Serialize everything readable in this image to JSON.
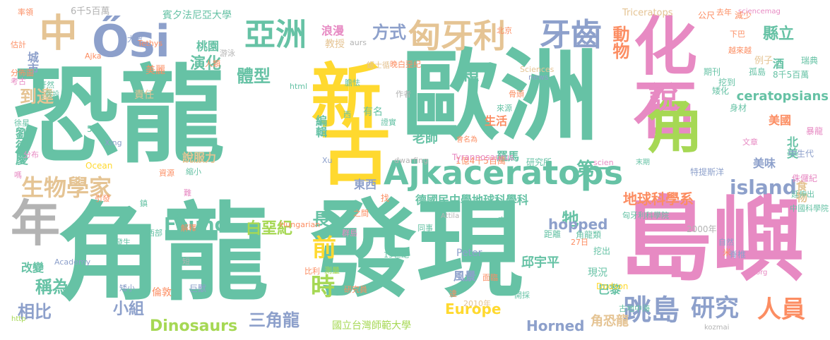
{
  "colors": {
    "teal": "#66c2a5",
    "orange": "#fc8d62",
    "blue": "#8da0cb",
    "pink": "#e78ac3",
    "green": "#a6d854",
    "yellow": "#ffd92f",
    "tan": "#e5c494",
    "gray": "#b3b3b3"
  },
  "words": [
    {
      "t": "恐龍",
      "c": "teal"
    },
    {
      "t": "歐洲",
      "c": "teal"
    },
    {
      "t": "化石",
      "c": "pink"
    },
    {
      "t": "角龍",
      "c": "teal"
    },
    {
      "t": "發現",
      "c": "teal"
    },
    {
      "t": "島嶼",
      "c": "pink"
    },
    {
      "t": "新",
      "c": "yellow"
    },
    {
      "t": "古",
      "c": "yellow"
    },
    {
      "t": "角",
      "c": "green"
    },
    {
      "t": "說",
      "c": "pink"
    },
    {
      "t": "年",
      "c": "gray"
    },
    {
      "t": "中",
      "c": "tan"
    },
    {
      "t": "Ősi",
      "c": "blue"
    },
    {
      "t": "Ajkaceratops",
      "c": "teal"
    },
    {
      "t": "亞洲",
      "c": "teal"
    },
    {
      "t": "匈牙利",
      "c": "tan"
    },
    {
      "t": "牙齒",
      "c": "blue"
    },
    {
      "t": "生物學家",
      "c": "tan"
    },
    {
      "t": "跳島",
      "c": "blue"
    },
    {
      "t": "研究",
      "c": "blue"
    },
    {
      "t": "人員",
      "c": "orange"
    },
    {
      "t": "相比",
      "c": "blue"
    },
    {
      "t": "三角龍",
      "c": "blue"
    },
    {
      "t": "island",
      "c": "blue"
    },
    {
      "t": "Found",
      "c": "teal"
    },
    {
      "t": "白堊紀",
      "c": "green"
    },
    {
      "t": "前",
      "c": "yellow"
    },
    {
      "t": "時",
      "c": "green"
    },
    {
      "t": "長",
      "c": "teal"
    },
    {
      "t": "牠",
      "c": "teal"
    },
    {
      "t": "方式",
      "c": "blue"
    },
    {
      "t": "動物",
      "c": "orange"
    },
    {
      "t": "第一",
      "c": "teal"
    },
    {
      "t": "縣立",
      "c": "teal"
    },
    {
      "t": "演化",
      "c": "teal"
    },
    {
      "t": "桃園",
      "c": "teal"
    },
    {
      "t": "體型",
      "c": "teal"
    },
    {
      "t": "到達",
      "c": "tan"
    },
    {
      "t": "稱為",
      "c": "teal"
    },
    {
      "t": "小組",
      "c": "blue"
    },
    {
      "t": "Dinosaurs",
      "c": "green"
    },
    {
      "t": "Europe",
      "c": "yellow"
    },
    {
      "t": "Horned",
      "c": "blue"
    },
    {
      "t": "角恐龍",
      "c": "tan"
    },
    {
      "t": "德國民中學地球科學科",
      "c": "teal"
    },
    {
      "t": "地球科學系",
      "c": "orange"
    },
    {
      "t": "食物",
      "c": "tan"
    },
    {
      "t": "美味",
      "c": "blue"
    },
    {
      "t": "北美",
      "c": "teal"
    },
    {
      "t": "美國",
      "c": "orange"
    },
    {
      "t": "ceratopsians",
      "c": "teal"
    },
    {
      "t": "劉德慶",
      "c": "teal"
    },
    {
      "t": "城市",
      "c": "blue"
    },
    {
      "t": "美麗",
      "c": "orange"
    },
    {
      "t": "責任",
      "c": "tan"
    },
    {
      "t": "老師",
      "c": "teal"
    },
    {
      "t": "羅馬",
      "c": "teal"
    },
    {
      "t": "編輯",
      "c": "teal"
    },
    {
      "t": "有名",
      "c": "teal"
    },
    {
      "t": "顆",
      "c": "teal"
    },
    {
      "t": "酒",
      "c": "teal"
    },
    {
      "t": "hopped",
      "c": "blue"
    },
    {
      "t": "邱宇平",
      "c": "teal"
    },
    {
      "t": "風景",
      "c": "blue"
    },
    {
      "t": "現況",
      "c": "teal"
    },
    {
      "t": "巴黎",
      "c": "teal"
    },
    {
      "t": "國立台灣師範大學",
      "c": "green"
    },
    {
      "t": "倫敦",
      "c": "orange"
    },
    {
      "t": "改變",
      "c": "teal"
    },
    {
      "t": "東西",
      "c": "blue"
    },
    {
      "t": "浪漫",
      "c": "pink"
    },
    {
      "t": "教授",
      "c": "tan"
    },
    {
      "t": "賓夕法尼亞大學",
      "c": "teal"
    },
    {
      "t": "6千5百萬",
      "c": "gray"
    },
    {
      "t": "率領",
      "c": "orange"
    },
    {
      "t": "生活",
      "c": "orange"
    },
    {
      "t": "說服力",
      "c": "tan"
    },
    {
      "t": "Dodson",
      "c": "yellow"
    },
    {
      "t": "Peter",
      "c": "blue"
    },
    {
      "t": "Triceratops",
      "c": "tan"
    },
    {
      "t": "sciencemag",
      "c": "pink"
    },
    {
      "t": "公尺",
      "c": "orange"
    },
    {
      "t": "減少",
      "c": "orange"
    },
    {
      "t": "下巴",
      "c": "orange"
    },
    {
      "t": "越來越",
      "c": "orange"
    },
    {
      "t": "例子",
      "c": "tan"
    },
    {
      "t": "瑞典",
      "c": "teal"
    },
    {
      "t": "孤島",
      "c": "teal"
    },
    {
      "t": "8千5百萬",
      "c": "teal"
    },
    {
      "t": "期刊",
      "c": "teal"
    },
    {
      "t": "矮化",
      "c": "teal"
    },
    {
      "t": "挖到",
      "c": "teal"
    },
    {
      "t": "身材",
      "c": "teal"
    },
    {
      "t": "去年",
      "c": "orange"
    },
    {
      "t": "古地中海",
      "c": "teal"
    },
    {
      "t": "挖出",
      "c": "teal"
    },
    {
      "t": "自然",
      "c": "blue"
    },
    {
      "t": "脊椎",
      "c": "blue"
    },
    {
      "t": "特提斯洋",
      "c": "blue"
    },
    {
      "t": "中生代",
      "c": "blue"
    },
    {
      "t": "侏儸紀",
      "c": "pink"
    },
    {
      "t": "暴龍",
      "c": "pink"
    },
    {
      "t": "文章",
      "c": "pink"
    },
    {
      "t": "延伸出",
      "c": "teal"
    },
    {
      "t": "中國科學院",
      "c": "teal"
    },
    {
      "t": "2000年",
      "c": "gray"
    },
    {
      "t": "匈牙利科學院",
      "c": "teal"
    },
    {
      "t": "角龍類",
      "c": "teal"
    },
    {
      "t": "27日",
      "c": "orange"
    },
    {
      "t": "米",
      "c": "orange"
    },
    {
      "t": "距離",
      "c": "teal"
    },
    {
      "t": "研究所",
      "c": "teal"
    },
    {
      "t": "1億4千5百萬",
      "c": "orange"
    },
    {
      "t": "會名為",
      "c": "orange"
    },
    {
      "t": "Tyrannosaurus",
      "c": "pink"
    },
    {
      "t": "dwarfing",
      "c": "gray"
    },
    {
      "t": "末期",
      "c": "teal"
    },
    {
      "t": "Xu",
      "c": "blue"
    },
    {
      "t": "scien",
      "c": "pink"
    },
    {
      "t": "Ocean",
      "c": "yellow"
    },
    {
      "t": "Xing",
      "c": "blue"
    },
    {
      "t": "5月",
      "c": "teal"
    },
    {
      "t": "少",
      "c": "teal"
    },
    {
      "t": "分布",
      "c": "pink"
    },
    {
      "t": "徐星",
      "c": "teal"
    },
    {
      "t": "假設",
      "c": "teal"
    },
    {
      "t": "軒然",
      "c": "teal"
    },
    {
      "t": "考古",
      "c": "pink"
    },
    {
      "t": "分佈圖",
      "c": "orange"
    },
    {
      "t": "估計",
      "c": "orange"
    },
    {
      "t": "Ajka",
      "c": "orange"
    },
    {
      "t": "大波",
      "c": "blue"
    },
    {
      "t": "Tethys",
      "c": "orange"
    },
    {
      "t": "游泳",
      "c": "gray"
    },
    {
      "t": "人類",
      "c": "orange"
    },
    {
      "t": "html",
      "c": "teal"
    },
    {
      "t": "aurs",
      "c": "gray"
    },
    {
      "t": "北京",
      "c": "orange"
    },
    {
      "t": "晚白堊紀",
      "c": "orange"
    },
    {
      "t": "鋸士循",
      "c": "tan"
    },
    {
      "t": "Sciences",
      "c": "tan"
    },
    {
      "t": "news",
      "c": "blue"
    },
    {
      "t": "膽怯",
      "c": "teal"
    },
    {
      "t": "作者",
      "c": "gray"
    },
    {
      "t": "骨頭",
      "c": "orange"
    },
    {
      "t": "來源",
      "c": "teal"
    },
    {
      "t": "證實",
      "c": "teal"
    },
    {
      "t": "西",
      "c": "teal"
    },
    {
      "t": "嗎",
      "c": "pink"
    },
    {
      "t": "引發",
      "c": "orange"
    },
    {
      "t": "鎮",
      "c": "teal"
    },
    {
      "t": "難",
      "c": "pink"
    },
    {
      "t": "延伸到",
      "c": "teal"
    },
    {
      "t": "解釋",
      "c": "orange"
    },
    {
      "t": "西部",
      "c": "teal"
    },
    {
      "t": "發生",
      "c": "teal"
    },
    {
      "t": "縮小",
      "c": "teal"
    },
    {
      "t": "資源",
      "c": "orange"
    },
    {
      "t": "找",
      "c": "orange"
    },
    {
      "t": "Hungarian",
      "c": "orange"
    },
    {
      "t": "之間",
      "c": "orange"
    },
    {
      "t": "群島",
      "c": "pink"
    },
    {
      "t": "Attila",
      "c": "gray"
    },
    {
      "t": "同事",
      "c": "teal"
    },
    {
      "t": "來到",
      "c": "teal"
    },
    {
      "t": "19世紀",
      "c": "teal"
    },
    {
      "t": "Academy",
      "c": "blue"
    },
    {
      "t": "短",
      "c": "gray"
    },
    {
      "t": "巨獸",
      "c": "blue"
    },
    {
      "t": "矮小",
      "c": "blue"
    },
    {
      "t": "比利",
      "c": "orange"
    },
    {
      "t": "測量",
      "c": "green"
    },
    {
      "t": "研究員",
      "c": "orange"
    },
    {
      "t": "達",
      "c": "orange"
    },
    {
      "t": "2010年",
      "c": "tan"
    },
    {
      "t": "面臨",
      "c": "orange"
    },
    {
      "t": "開採",
      "c": "teal"
    },
    {
      "t": "http",
      "c": "green"
    },
    {
      "t": "org",
      "c": "pink"
    },
    {
      "t": "kozmai",
      "c": "gray"
    }
  ]
}
